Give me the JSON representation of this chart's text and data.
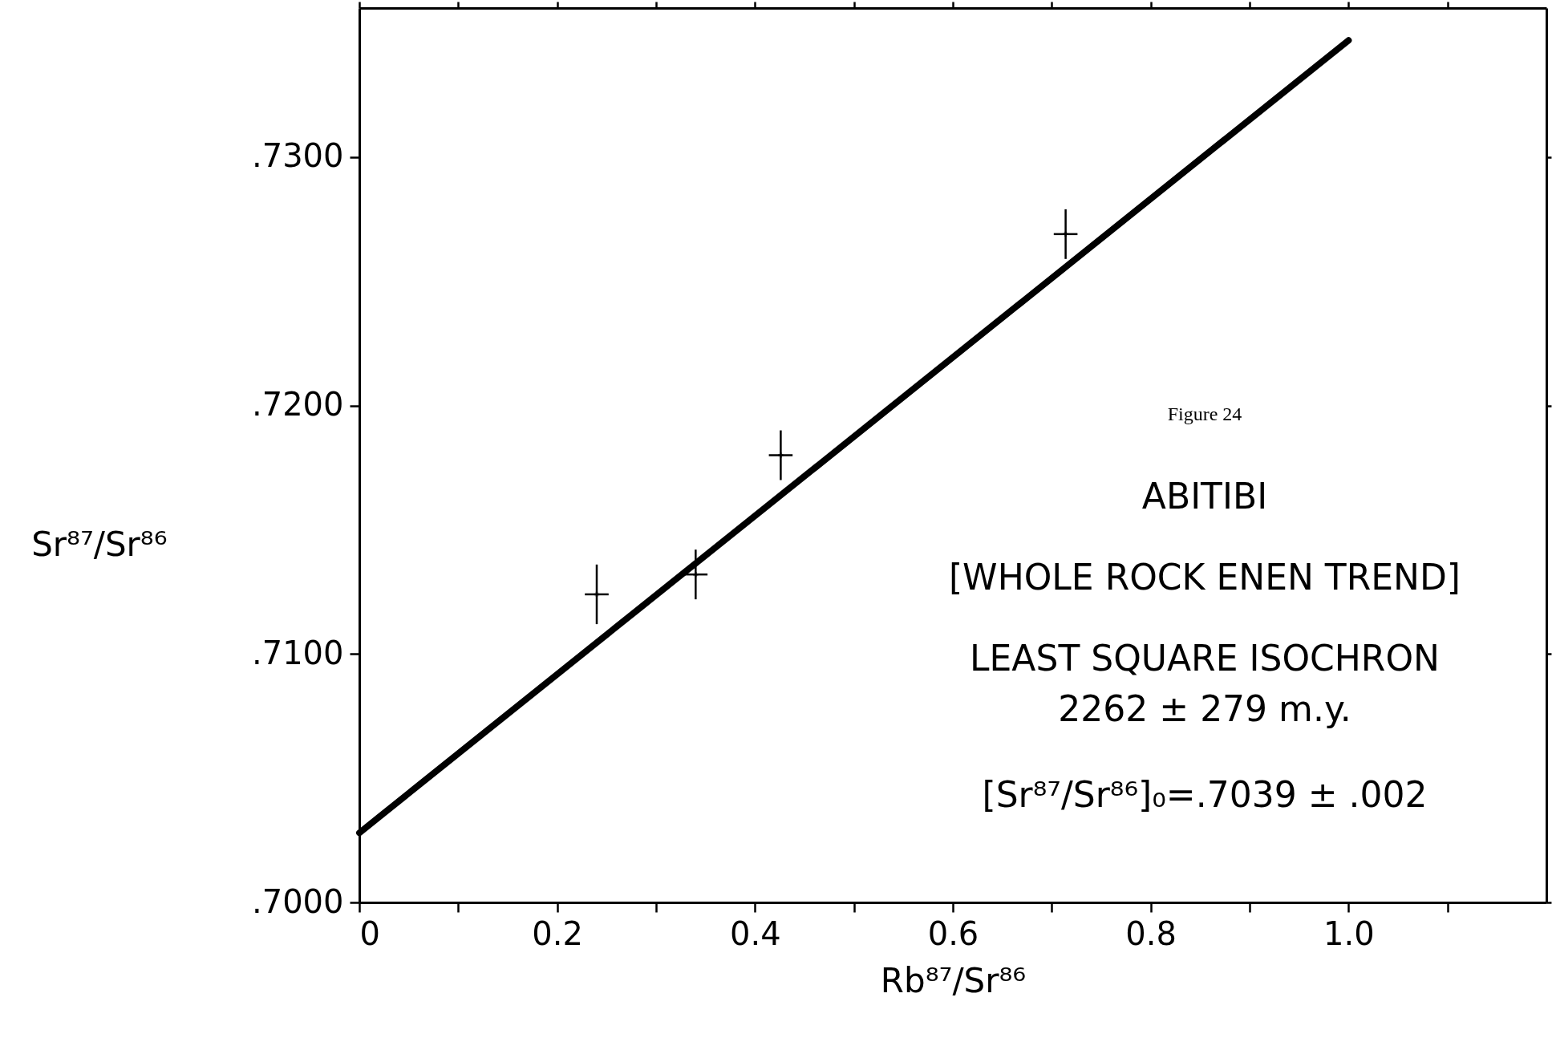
{
  "chart_data": {
    "type": "scatter",
    "xlabel": "Rb⁸⁷/Sr⁸⁶",
    "ylabel": "Sr⁸⁷/Sr⁸⁶",
    "xlim": [
      0,
      1.2
    ],
    "xticks": [
      0,
      {
        "value": 0.1,
        "label": null
      },
      {
        "value": 0.2,
        "label": "0.2"
      },
      {
        "value": 0.3,
        "label": null
      },
      {
        "value": 0.4,
        "label": "0.4"
      },
      {
        "value": 0.5,
        "label": null
      },
      {
        "value": 0.6,
        "label": "0.6"
      },
      {
        "value": 0.7,
        "label": null
      },
      {
        "value": 0.8,
        "label": "0.8"
      },
      {
        "value": 0.9,
        "label": null
      },
      {
        "value": 1.0,
        "label": "1.0"
      },
      {
        "value": 1.1,
        "label": null
      }
    ],
    "ylim": [
      0.7,
      0.736
    ],
    "yticks": [
      {
        "value": 0.7,
        "label": ".7000"
      },
      {
        "value": 0.71,
        "label": ".7100"
      },
      {
        "value": 0.72,
        "label": ".7200"
      },
      {
        "value": 0.73,
        "label": ".7300"
      }
    ],
    "grid": false,
    "series": [
      {
        "marker": "cross",
        "color": "#000000",
        "x": [
          0.24,
          0.34,
          0.426,
          0.714
        ],
        "values": [
          0.7124,
          0.7132,
          0.718,
          0.7269
        ],
        "errors": [
          0.0012,
          0.001,
          0.001,
          0.001
        ],
        "xerrors": [
          0.012,
          0.012,
          0.012,
          0.012
        ]
      },
      {
        "type": "line",
        "marker": "none",
        "color": "#000000",
        "x": [
          0,
          1.0
        ],
        "values": [
          0.7028,
          0.7347
        ]
      }
    ],
    "annotations": [
      "Figure 24",
      "ABITIBI",
      "[WHOLE ROCK ENEN TREND]",
      "LEAST SQUARE ISOCHRON",
      "2262 ± 279 m.y.",
      "[Sr⁸⁷/Sr⁸⁶]₀=.7039 ± .002"
    ]
  }
}
